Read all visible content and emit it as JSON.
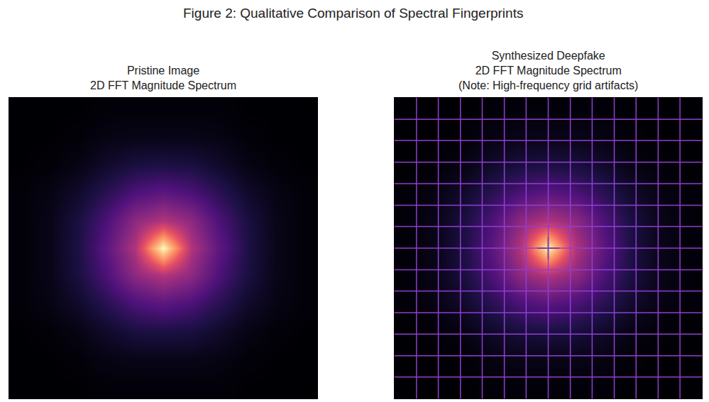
{
  "title": "Figure 2: Qualitative Comparison of Spectral Fingerprints",
  "chart_data": [
    {
      "type": "heatmap",
      "title": "Pristine Image\n2D FFT Magnitude Spectrum",
      "tick_labels": false,
      "cells": [
        [
          0.02,
          0.02,
          0.02,
          0.03,
          0.03,
          0.03,
          0.03,
          0.03,
          0.02,
          0.02,
          0.02
        ],
        [
          0.02,
          0.02,
          0.03,
          0.05,
          0.06,
          0.06,
          0.06,
          0.05,
          0.03,
          0.02,
          0.02
        ],
        [
          0.02,
          0.03,
          0.05,
          0.1,
          0.14,
          0.15,
          0.14,
          0.1,
          0.05,
          0.03,
          0.02
        ],
        [
          0.03,
          0.05,
          0.1,
          0.18,
          0.26,
          0.3,
          0.26,
          0.18,
          0.1,
          0.05,
          0.03
        ],
        [
          0.03,
          0.06,
          0.14,
          0.26,
          0.42,
          0.5,
          0.42,
          0.26,
          0.14,
          0.06,
          0.03
        ],
        [
          0.03,
          0.06,
          0.15,
          0.3,
          0.5,
          1.0,
          0.5,
          0.3,
          0.15,
          0.06,
          0.03
        ],
        [
          0.03,
          0.06,
          0.14,
          0.26,
          0.42,
          0.5,
          0.42,
          0.26,
          0.14,
          0.06,
          0.03
        ],
        [
          0.03,
          0.05,
          0.1,
          0.18,
          0.26,
          0.3,
          0.26,
          0.18,
          0.1,
          0.05,
          0.03
        ],
        [
          0.02,
          0.03,
          0.05,
          0.1,
          0.14,
          0.15,
          0.14,
          0.1,
          0.05,
          0.03,
          0.02
        ],
        [
          0.02,
          0.02,
          0.03,
          0.05,
          0.06,
          0.06,
          0.06,
          0.05,
          0.03,
          0.02,
          0.02
        ],
        [
          0.02,
          0.02,
          0.02,
          0.03,
          0.03,
          0.03,
          0.03,
          0.03,
          0.02,
          0.02,
          0.02
        ]
      ]
    },
    {
      "type": "heatmap",
      "title": "Synthesized Deepfake\n2D FFT Magnitude Spectrum\n(Note: High-frequency grid artifacts)",
      "tick_labels": false,
      "cells": [
        [
          0.02,
          0.02,
          0.02,
          0.03,
          0.03,
          0.03,
          0.03,
          0.03,
          0.02,
          0.02,
          0.02
        ],
        [
          0.02,
          0.02,
          0.03,
          0.05,
          0.06,
          0.06,
          0.06,
          0.05,
          0.03,
          0.02,
          0.02
        ],
        [
          0.02,
          0.03,
          0.05,
          0.1,
          0.14,
          0.15,
          0.14,
          0.1,
          0.05,
          0.03,
          0.02
        ],
        [
          0.03,
          0.05,
          0.1,
          0.18,
          0.26,
          0.3,
          0.26,
          0.18,
          0.1,
          0.05,
          0.03
        ],
        [
          0.03,
          0.06,
          0.14,
          0.26,
          0.42,
          0.5,
          0.42,
          0.26,
          0.14,
          0.06,
          0.03
        ],
        [
          0.03,
          0.06,
          0.15,
          0.3,
          0.5,
          1.0,
          0.5,
          0.3,
          0.15,
          0.06,
          0.03
        ],
        [
          0.03,
          0.06,
          0.14,
          0.26,
          0.42,
          0.5,
          0.42,
          0.26,
          0.14,
          0.06,
          0.03
        ],
        [
          0.03,
          0.05,
          0.1,
          0.18,
          0.26,
          0.3,
          0.26,
          0.18,
          0.1,
          0.05,
          0.03
        ],
        [
          0.02,
          0.03,
          0.05,
          0.1,
          0.14,
          0.15,
          0.14,
          0.1,
          0.05,
          0.03,
          0.02
        ],
        [
          0.02,
          0.02,
          0.03,
          0.05,
          0.06,
          0.06,
          0.06,
          0.05,
          0.03,
          0.02,
          0.02
        ],
        [
          0.02,
          0.02,
          0.02,
          0.03,
          0.03,
          0.03,
          0.03,
          0.03,
          0.02,
          0.02,
          0.02
        ]
      ],
      "grid_lines": {
        "x": [
          0.29,
          1.07,
          1.86,
          2.64,
          3.43,
          4.21,
          5.0,
          5.79,
          6.57,
          7.36,
          8.14,
          8.93,
          9.71
        ],
        "y": [
          0.29,
          1.07,
          1.86,
          2.64,
          3.43,
          4.21,
          5.0,
          5.79,
          6.57,
          7.36,
          8.14,
          8.93,
          9.71
        ]
      },
      "center_marker": {
        "x": 5,
        "y": 5,
        "marker": "cross"
      }
    }
  ]
}
